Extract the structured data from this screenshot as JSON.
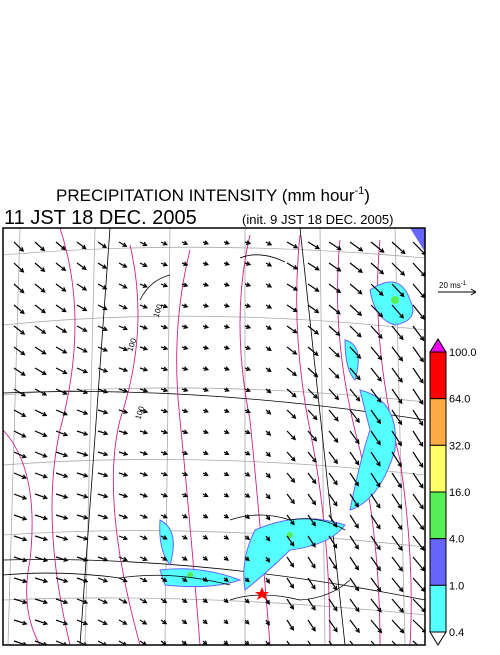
{
  "header": {
    "title": "PRECIPITATION INTENSITY (mm hour",
    "title_exponent": "-1",
    "title_close": ")",
    "valid_time": "11 JST 18 DEC. 2005",
    "init_time": "(init. 9 JST 18 DEC. 2005)"
  },
  "reference_vector": {
    "label": "20 ms",
    "exponent": "-1"
  },
  "colorbar": {
    "labels": [
      "100.0",
      "64.0",
      "32.0",
      "16.0",
      "4.0",
      "1.0",
      "0.4"
    ],
    "colors": [
      "#ee00ee",
      "#ff0000",
      "#ffaa44",
      "#ffff66",
      "#55ee55",
      "#6666ff",
      "#55ffff",
      "#ffffff"
    ]
  },
  "map": {
    "contour_labels": [
      "100",
      "100",
      "100"
    ]
  }
}
